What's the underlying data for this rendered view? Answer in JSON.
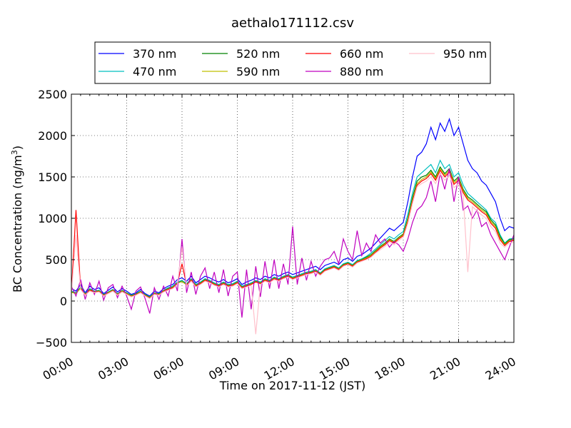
{
  "chart_data": {
    "type": "line",
    "title": "aethalo171112.csv",
    "xlabel": "Time on 2017-11-12 (JST)",
    "ylabel_main": "BC Concentration (ng/m",
    "ylabel_sup": "3",
    "ylabel_close": ")",
    "xlim": [
      0,
      24
    ],
    "ylim": [
      -500,
      2500
    ],
    "x_ticks": [
      0,
      3,
      6,
      9,
      12,
      15,
      18,
      21,
      24
    ],
    "x_tick_labels": [
      "00:00",
      "03:00",
      "06:00",
      "09:00",
      "12:00",
      "15:00",
      "18:00",
      "21:00",
      "24:00"
    ],
    "y_ticks": [
      -500,
      0,
      500,
      1000,
      1500,
      2000,
      2500
    ],
    "y_tick_labels": [
      "−500",
      "0",
      "500",
      "1000",
      "1500",
      "2000",
      "2500"
    ],
    "grid": true,
    "legend_position": "top-center-outside",
    "x_hours": [
      0.0,
      0.25,
      0.5,
      0.75,
      1.0,
      1.25,
      1.5,
      1.75,
      2.0,
      2.25,
      2.5,
      2.75,
      3.0,
      3.25,
      3.5,
      3.75,
      4.0,
      4.25,
      4.5,
      4.75,
      5.0,
      5.25,
      5.5,
      5.75,
      6.0,
      6.25,
      6.5,
      6.75,
      7.0,
      7.25,
      7.5,
      7.75,
      8.0,
      8.25,
      8.5,
      8.75,
      9.0,
      9.25,
      9.5,
      9.75,
      10.0,
      10.25,
      10.5,
      10.75,
      11.0,
      11.25,
      11.5,
      11.75,
      12.0,
      12.25,
      12.5,
      12.75,
      13.0,
      13.25,
      13.5,
      13.75,
      14.0,
      14.25,
      14.5,
      14.75,
      15.0,
      15.25,
      15.5,
      15.75,
      16.0,
      16.25,
      16.5,
      16.75,
      17.0,
      17.25,
      17.5,
      17.75,
      18.0,
      18.25,
      18.5,
      18.75,
      19.0,
      19.25,
      19.5,
      19.75,
      20.0,
      20.25,
      20.5,
      20.75,
      21.0,
      21.25,
      21.5,
      21.75,
      22.0,
      22.25,
      22.5,
      22.75,
      23.0,
      23.25,
      23.5,
      23.75,
      24.0
    ],
    "series": [
      {
        "name": "370 nm",
        "color": "#0000ff",
        "values": [
          150,
          120,
          200,
          100,
          180,
          140,
          160,
          90,
          130,
          170,
          110,
          150,
          120,
          80,
          100,
          140,
          90,
          60,
          120,
          100,
          150,
          180,
          200,
          260,
          280,
          240,
          300,
          220,
          260,
          300,
          280,
          250,
          230,
          260,
          220,
          240,
          270,
          200,
          230,
          250,
          280,
          260,
          300,
          280,
          320,
          300,
          330,
          350,
          320,
          340,
          360,
          380,
          400,
          420,
          380,
          430,
          450,
          470,
          440,
          500,
          520,
          480,
          540,
          560,
          600,
          640,
          700,
          760,
          820,
          880,
          850,
          900,
          950,
          1200,
          1500,
          1750,
          1800,
          1900,
          2100,
          1950,
          2150,
          2050,
          2200,
          2000,
          2100,
          1900,
          1700,
          1600,
          1550,
          1450,
          1400,
          1300,
          1200,
          1000,
          850,
          900,
          880
        ]
      },
      {
        "name": "470 nm",
        "color": "#00bfbf",
        "values": [
          120,
          100,
          170,
          90,
          150,
          120,
          130,
          80,
          110,
          140,
          90,
          130,
          100,
          70,
          90,
          120,
          80,
          50,
          100,
          90,
          130,
          160,
          180,
          230,
          250,
          210,
          270,
          200,
          230,
          270,
          250,
          220,
          200,
          230,
          200,
          210,
          240,
          180,
          200,
          220,
          250,
          230,
          270,
          250,
          290,
          270,
          300,
          320,
          290,
          310,
          330,
          350,
          360,
          380,
          340,
          390,
          410,
          430,
          400,
          450,
          470,
          440,
          490,
          510,
          540,
          580,
          630,
          680,
          730,
          780,
          750,
          800,
          840,
          1050,
          1300,
          1500,
          1550,
          1600,
          1650,
          1550,
          1700,
          1600,
          1650,
          1500,
          1550,
          1400,
          1300,
          1250,
          1200,
          1150,
          1100,
          1000,
          950,
          800,
          700,
          750,
          760
        ]
      },
      {
        "name": "520 nm",
        "color": "#008000",
        "values": [
          110,
          95,
          160,
          85,
          140,
          115,
          125,
          75,
          105,
          135,
          85,
          125,
          95,
          65,
          85,
          115,
          75,
          45,
          95,
          85,
          125,
          150,
          170,
          220,
          240,
          200,
          260,
          190,
          220,
          260,
          240,
          210,
          190,
          220,
          190,
          200,
          230,
          170,
          190,
          210,
          240,
          220,
          260,
          240,
          280,
          260,
          290,
          310,
          280,
          300,
          320,
          340,
          350,
          370,
          330,
          380,
          400,
          420,
          390,
          440,
          460,
          430,
          480,
          500,
          530,
          560,
          610,
          660,
          700,
          750,
          720,
          770,
          810,
          1000,
          1250,
          1450,
          1500,
          1520,
          1580,
          1500,
          1620,
          1540,
          1600,
          1450,
          1500,
          1350,
          1260,
          1220,
          1170,
          1120,
          1080,
          980,
          920,
          780,
          690,
          740,
          750
        ]
      },
      {
        "name": "590 nm",
        "color": "#bfbf00",
        "values": [
          105,
          90,
          155,
          80,
          135,
          110,
          120,
          70,
          100,
          130,
          80,
          120,
          90,
          60,
          80,
          110,
          70,
          40,
          90,
          80,
          120,
          145,
          165,
          215,
          235,
          195,
          255,
          185,
          215,
          255,
          235,
          205,
          185,
          215,
          185,
          195,
          225,
          165,
          185,
          205,
          235,
          215,
          255,
          235,
          275,
          255,
          285,
          305,
          275,
          295,
          315,
          335,
          345,
          365,
          325,
          375,
          395,
          415,
          385,
          435,
          455,
          425,
          475,
          495,
          520,
          550,
          600,
          650,
          690,
          740,
          710,
          760,
          800,
          980,
          1220,
          1420,
          1470,
          1500,
          1560,
          1480,
          1600,
          1520,
          1580,
          1430,
          1480,
          1330,
          1240,
          1200,
          1150,
          1100,
          1060,
          960,
          900,
          760,
          680,
          730,
          740
        ]
      },
      {
        "name": "660 nm",
        "color": "#ff0000",
        "values": [
          100,
          1100,
          150,
          75,
          130,
          105,
          115,
          65,
          95,
          125,
          75,
          115,
          85,
          55,
          75,
          105,
          65,
          35,
          85,
          75,
          115,
          140,
          160,
          210,
          450,
          190,
          250,
          180,
          210,
          250,
          230,
          200,
          180,
          210,
          180,
          190,
          220,
          160,
          180,
          200,
          230,
          210,
          250,
          230,
          270,
          250,
          280,
          300,
          270,
          290,
          310,
          330,
          340,
          360,
          320,
          370,
          390,
          410,
          380,
          430,
          450,
          420,
          470,
          490,
          510,
          540,
          590,
          640,
          680,
          730,
          700,
          750,
          790,
          960,
          1200,
          1400,
          1450,
          1480,
          1540,
          1460,
          1580,
          1500,
          1560,
          1410,
          1460,
          1310,
          1220,
          1180,
          1130,
          1080,
          1040,
          940,
          880,
          740,
          670,
          720,
          730
        ]
      },
      {
        "name": "880 nm",
        "color": "#bf00bf",
        "values": [
          180,
          60,
          260,
          20,
          220,
          80,
          240,
          10,
          160,
          200,
          40,
          180,
          60,
          -100,
          120,
          170,
          30,
          -150,
          160,
          20,
          180,
          60,
          300,
          120,
          750,
          100,
          350,
          80,
          300,
          400,
          150,
          350,
          100,
          380,
          60,
          300,
          350,
          -200,
          380,
          -100,
          420,
          50,
          480,
          150,
          500,
          150,
          450,
          200,
          900,
          200,
          520,
          250,
          480,
          300,
          420,
          500,
          520,
          600,
          450,
          750,
          600,
          500,
          850,
          550,
          700,
          600,
          800,
          700,
          750,
          650,
          720,
          680,
          600,
          750,
          950,
          1100,
          1150,
          1250,
          1450,
          1200,
          1550,
          1350,
          1600,
          1200,
          1500,
          1100,
          1150,
          1000,
          1100,
          900,
          950,
          800,
          700,
          600,
          500,
          650,
          800
        ]
      },
      {
        "name": "950 nm",
        "color": "#ffc0cb",
        "values": [
          90,
          800,
          140,
          70,
          120,
          100,
          110,
          60,
          90,
          120,
          70,
          110,
          80,
          50,
          70,
          100,
          60,
          30,
          80,
          70,
          110,
          130,
          150,
          200,
          650,
          180,
          240,
          170,
          200,
          240,
          220,
          190,
          170,
          200,
          170,
          180,
          210,
          150,
          170,
          190,
          -400,
          200,
          240,
          220,
          260,
          240,
          270,
          290,
          260,
          280,
          300,
          320,
          330,
          350,
          310,
          360,
          380,
          400,
          370,
          420,
          440,
          410,
          460,
          480,
          500,
          530,
          580,
          620,
          660,
          710,
          680,
          730,
          770,
          940,
          1180,
          1380,
          1420,
          1450,
          1500,
          1420,
          1540,
          1460,
          1520,
          1370,
          1420,
          1270,
          350,
          1140,
          1090,
          1040,
          1000,
          900,
          840,
          700,
          650,
          700,
          710
        ]
      }
    ]
  }
}
